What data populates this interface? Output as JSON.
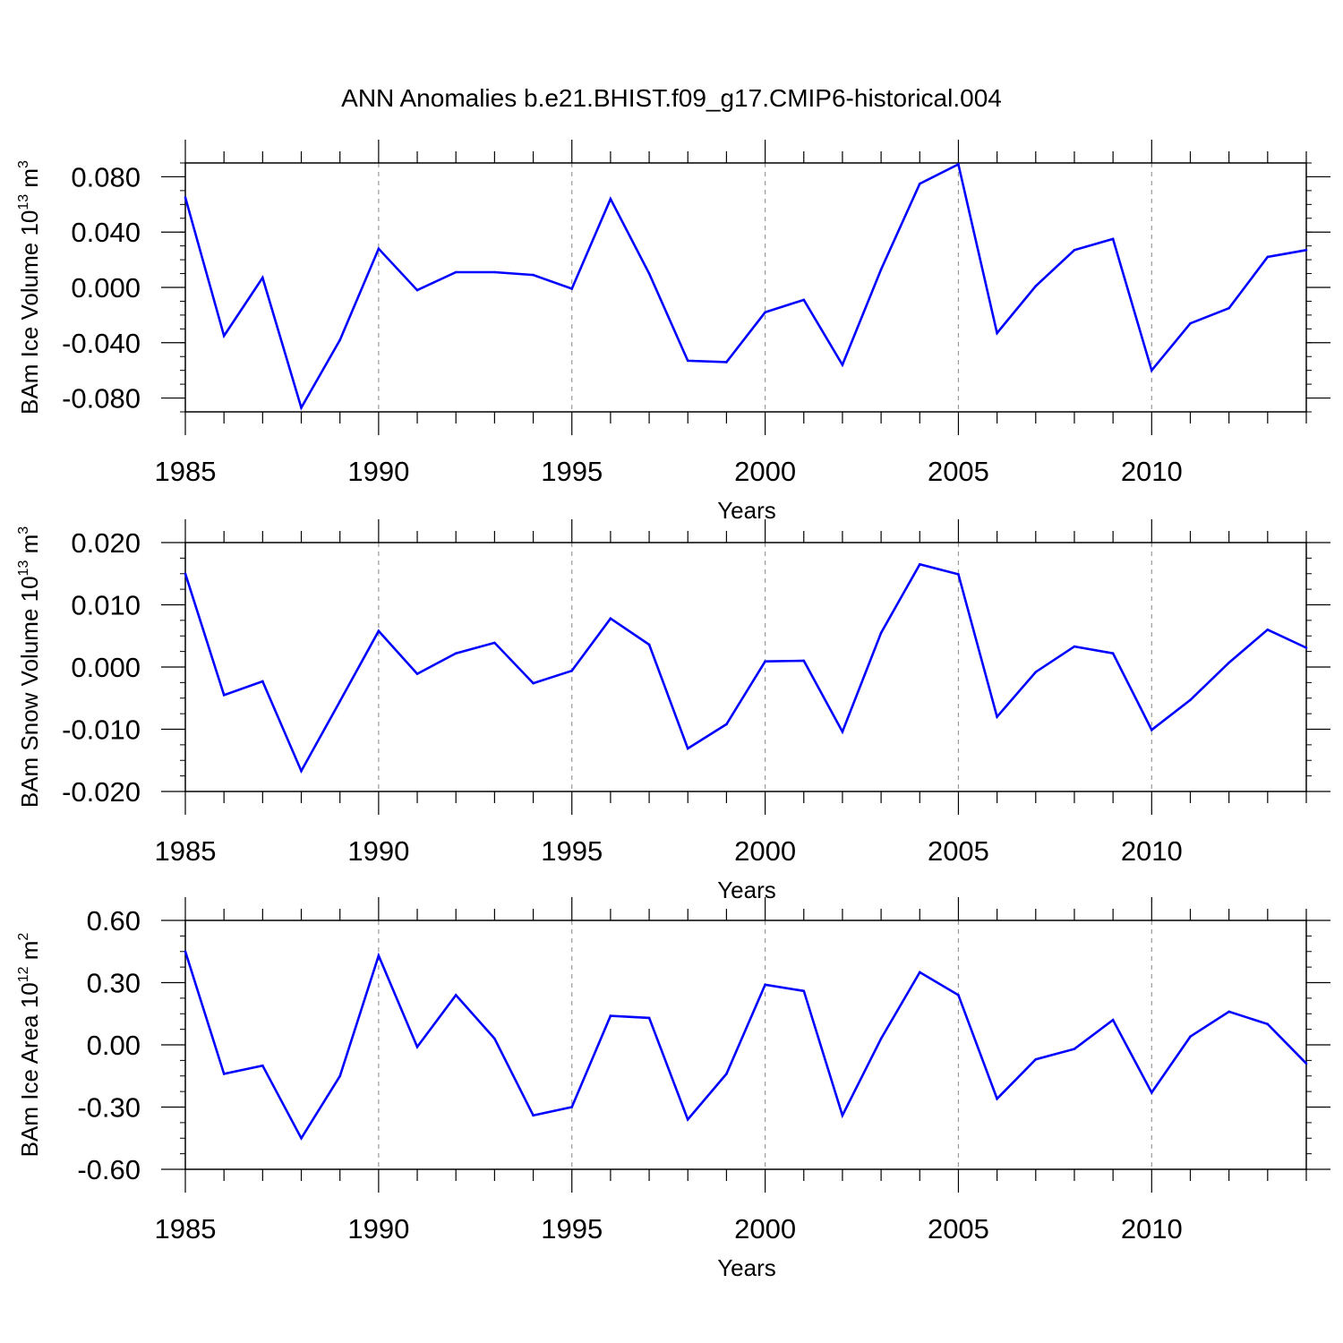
{
  "title": "ANN Anomalies b.e21.BHIST.f09_g17.CMIP6-historical.004",
  "colors": {
    "line": "#0000ff",
    "axis": "#000000",
    "grid": "#999999"
  },
  "chart_data": [
    {
      "type": "line",
      "xlabel": "Years",
      "ylabel_parts": {
        "main": "BAm Ice Volume 10",
        "exp": "13",
        "unit": " m",
        "unit_exp": "3"
      },
      "ylim": [
        -0.09,
        0.09
      ],
      "xlim": [
        1985,
        2014
      ],
      "yticks": [
        -0.08,
        -0.04,
        0.0,
        0.04,
        0.08
      ],
      "ytick_labels": [
        "-0.080",
        "-0.040",
        "0.000",
        "0.040",
        "0.080"
      ],
      "xticks": [
        1985,
        1990,
        1995,
        2000,
        2005,
        2010
      ],
      "xtick_labels": [
        "1985",
        "1990",
        "1995",
        "2000",
        "2005",
        "2010"
      ],
      "x": [
        1985,
        1986,
        1987,
        1988,
        1989,
        1990,
        1991,
        1992,
        1993,
        1994,
        1995,
        1996,
        1997,
        1998,
        1999,
        2000,
        2001,
        2002,
        2003,
        2004,
        2005,
        2006,
        2007,
        2008,
        2009,
        2010,
        2011,
        2012,
        2013,
        2014
      ],
      "values": [
        0.065,
        -0.035,
        0.007,
        -0.087,
        -0.038,
        0.028,
        -0.002,
        0.011,
        0.011,
        0.009,
        -0.001,
        0.064,
        0.01,
        -0.053,
        -0.054,
        -0.018,
        -0.009,
        -0.056,
        0.013,
        0.075,
        0.089,
        -0.033,
        0.001,
        0.027,
        0.035,
        -0.06,
        -0.026,
        -0.015,
        0.022,
        0.027
      ]
    },
    {
      "type": "line",
      "xlabel": "Years",
      "ylabel_parts": {
        "main": "BAm Snow Volume 10",
        "exp": "13",
        "unit": " m",
        "unit_exp": "3"
      },
      "ylim": [
        -0.02,
        0.02
      ],
      "xlim": [
        1985,
        2014
      ],
      "yticks": [
        -0.02,
        -0.01,
        0.0,
        0.01,
        0.02
      ],
      "ytick_labels": [
        "-0.020",
        "-0.010",
        "0.000",
        "0.010",
        "0.020"
      ],
      "xticks": [
        1985,
        1990,
        1995,
        2000,
        2005,
        2010
      ],
      "xtick_labels": [
        "1985",
        "1990",
        "1995",
        "2000",
        "2005",
        "2010"
      ],
      "x": [
        1985,
        1986,
        1987,
        1988,
        1989,
        1990,
        1991,
        1992,
        1993,
        1994,
        1995,
        1996,
        1997,
        1998,
        1999,
        2000,
        2001,
        2002,
        2003,
        2004,
        2005,
        2006,
        2007,
        2008,
        2009,
        2010,
        2011,
        2012,
        2013,
        2014
      ],
      "values": [
        0.015,
        -0.0045,
        -0.0023,
        -0.0167,
        -0.0055,
        0.0058,
        -0.0011,
        0.0022,
        0.0039,
        -0.0026,
        -0.0006,
        0.0078,
        0.0036,
        -0.0131,
        -0.0092,
        0.0009,
        0.001,
        -0.0104,
        0.0055,
        0.0165,
        0.0149,
        -0.008,
        -0.0008,
        0.0033,
        0.0022,
        -0.0101,
        -0.0053,
        0.0007,
        0.006,
        0.0031
      ]
    },
    {
      "type": "line",
      "xlabel": "Years",
      "ylabel_parts": {
        "main": "BAm Ice Area 10",
        "exp": "12",
        "unit": " m",
        "unit_exp": "2"
      },
      "ylim": [
        -0.6,
        0.6
      ],
      "xlim": [
        1985,
        2014
      ],
      "yticks": [
        -0.6,
        -0.3,
        0.0,
        0.3,
        0.6
      ],
      "ytick_labels": [
        "-0.60",
        "-0.30",
        "0.00",
        "0.30",
        "0.60"
      ],
      "xticks": [
        1985,
        1990,
        1995,
        2000,
        2005,
        2010
      ],
      "xtick_labels": [
        "1985",
        "1990",
        "1995",
        "2000",
        "2005",
        "2010"
      ],
      "x": [
        1985,
        1986,
        1987,
        1988,
        1989,
        1990,
        1991,
        1992,
        1993,
        1994,
        1995,
        1996,
        1997,
        1998,
        1999,
        2000,
        2001,
        2002,
        2003,
        2004,
        2005,
        2006,
        2007,
        2008,
        2009,
        2010,
        2011,
        2012,
        2013,
        2014
      ],
      "values": [
        0.45,
        -0.14,
        -0.1,
        -0.45,
        -0.15,
        0.43,
        -0.01,
        0.24,
        0.03,
        -0.34,
        -0.3,
        0.14,
        0.13,
        -0.36,
        -0.14,
        0.29,
        0.26,
        -0.34,
        0.03,
        0.35,
        0.24,
        -0.26,
        -0.07,
        -0.02,
        0.12,
        -0.23,
        0.04,
        0.16,
        0.1,
        -0.09
      ]
    }
  ]
}
